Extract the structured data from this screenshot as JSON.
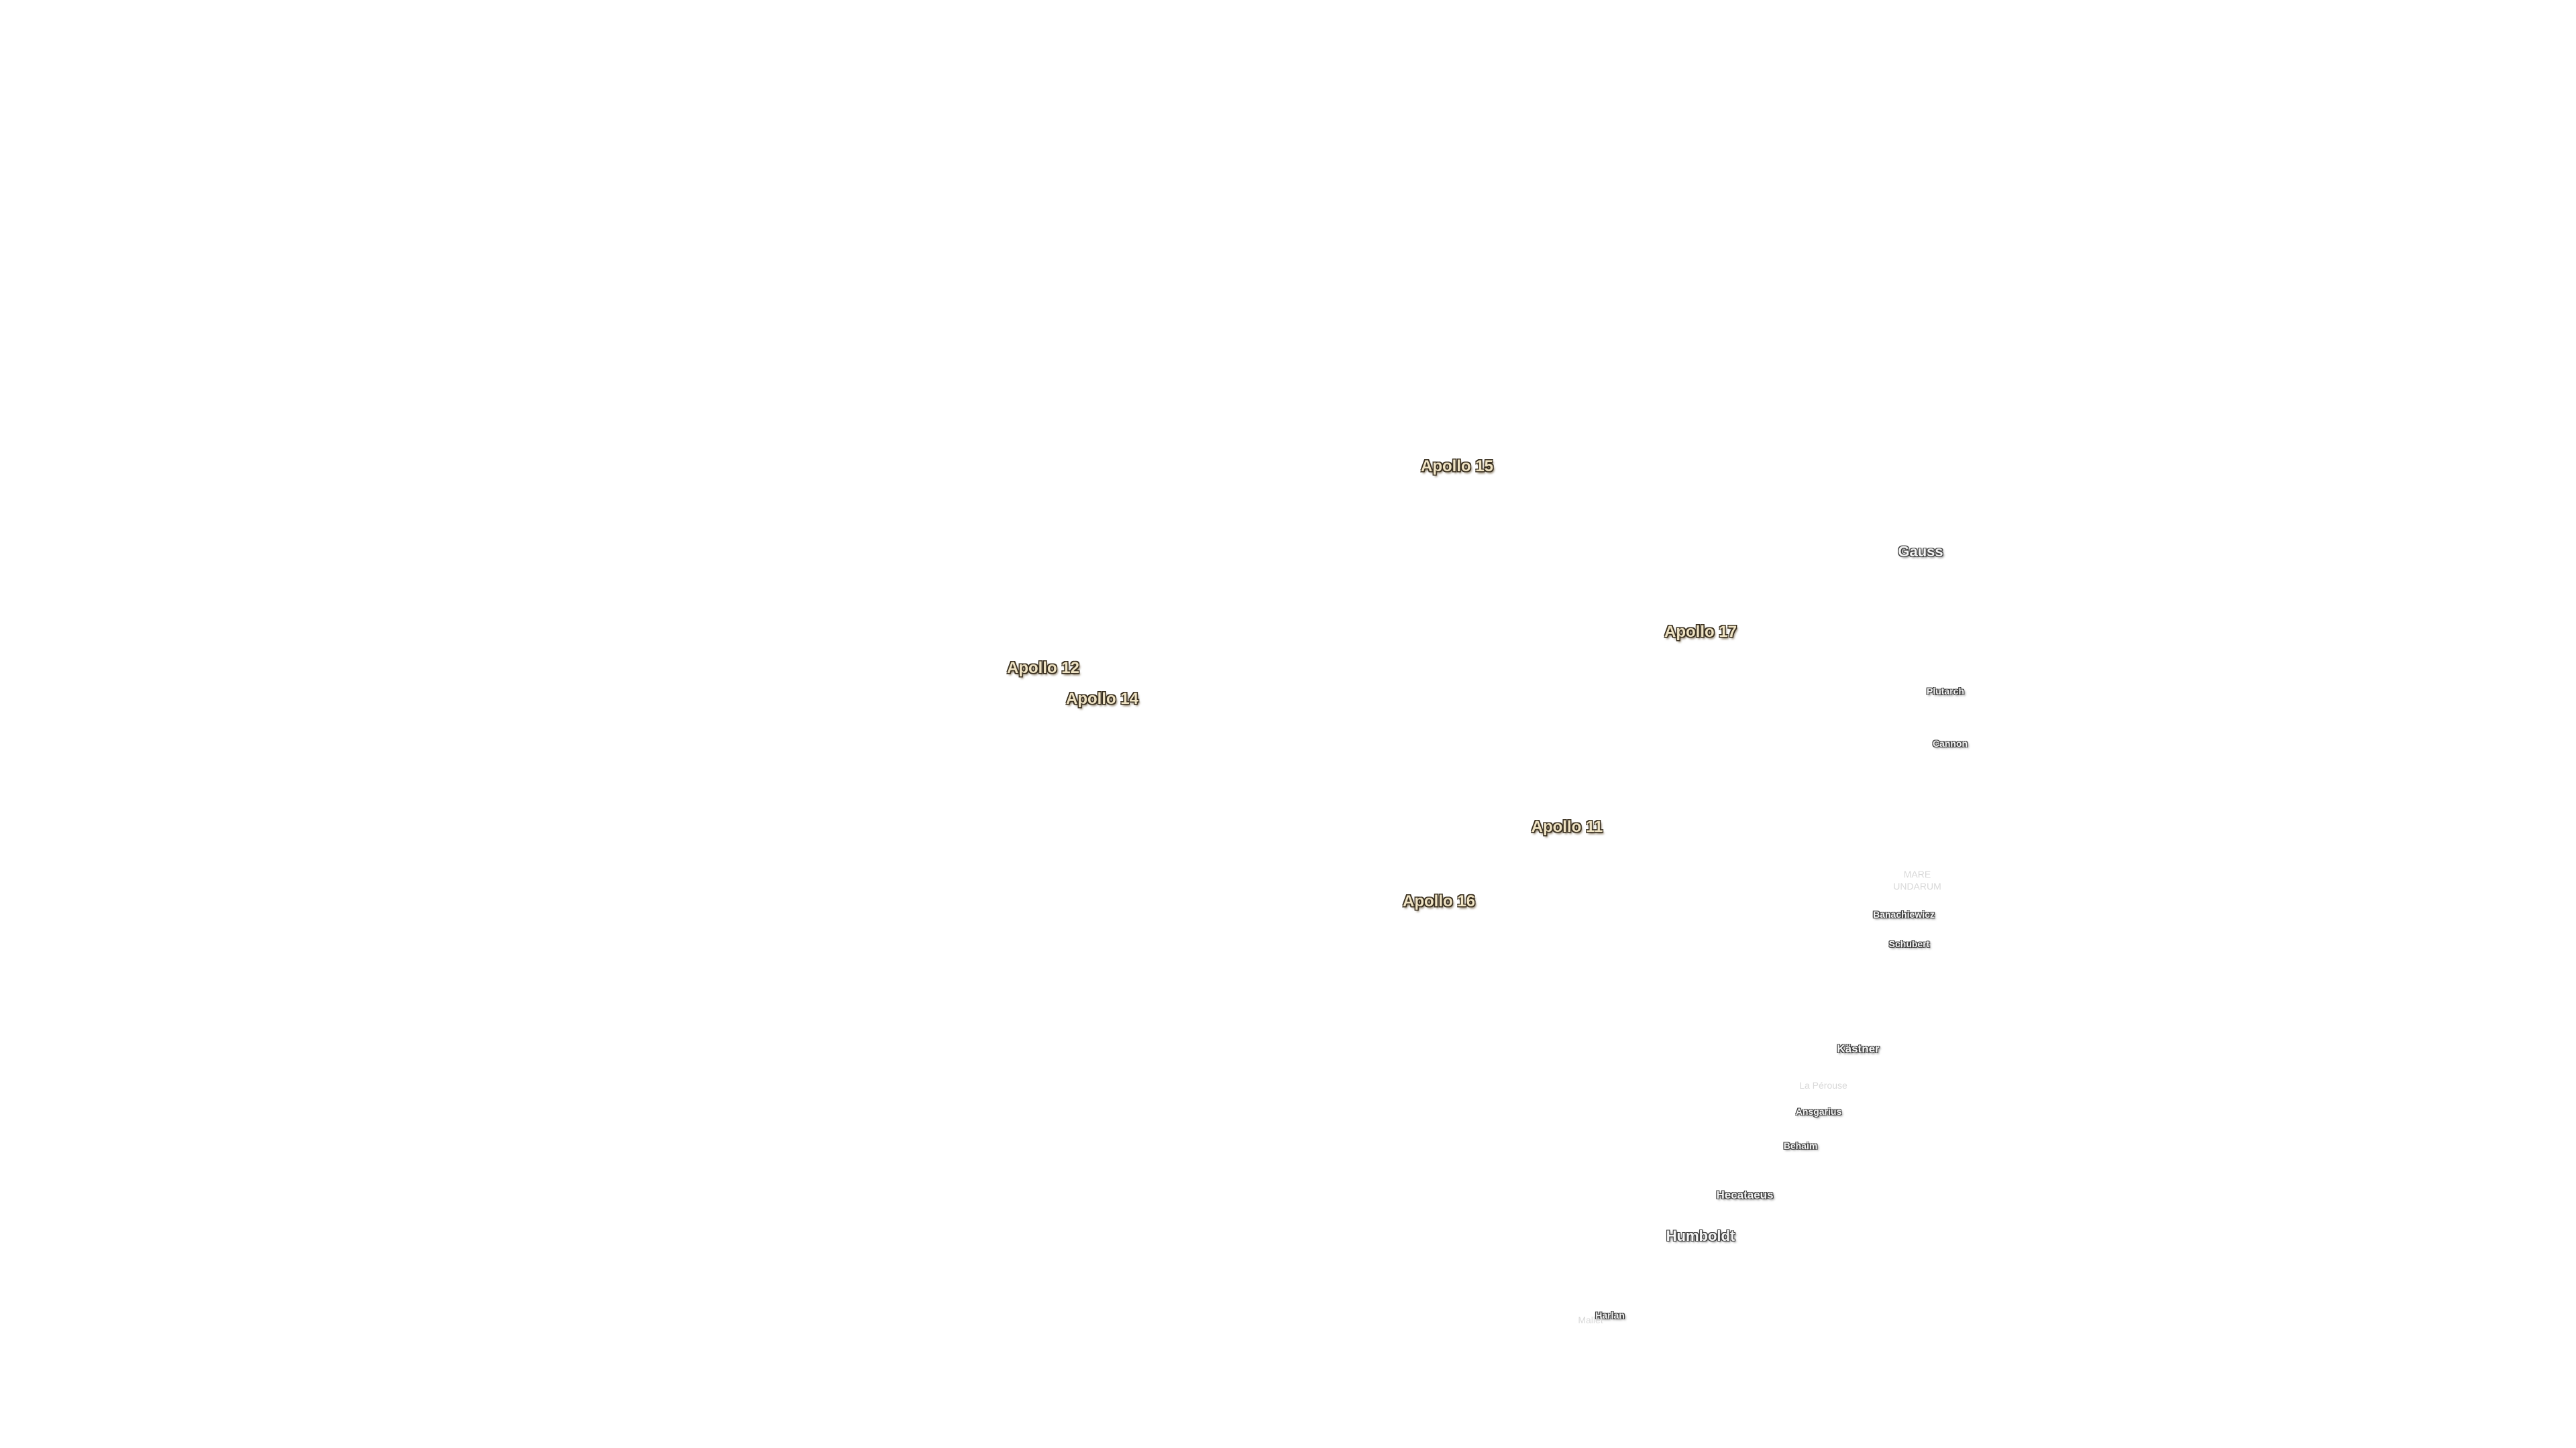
{
  "labels": {
    "apollo": [
      "Apollo 15",
      "Apollo 17",
      "Apollo 12",
      "Apollo 14",
      "Apollo 11",
      "Apollo 16"
    ],
    "craters": [
      "Gauss",
      "Plutarch",
      "Cannon",
      "Banachiewicz",
      "Schubert",
      "Kästner",
      "Ansgarius",
      "Behaim",
      "Hecataeus",
      "Humboldt",
      "Harlan"
    ],
    "faint": [
      [
        "MARE",
        "UNDARUM"
      ],
      "La Pérouse",
      "Mallet"
    ]
  }
}
